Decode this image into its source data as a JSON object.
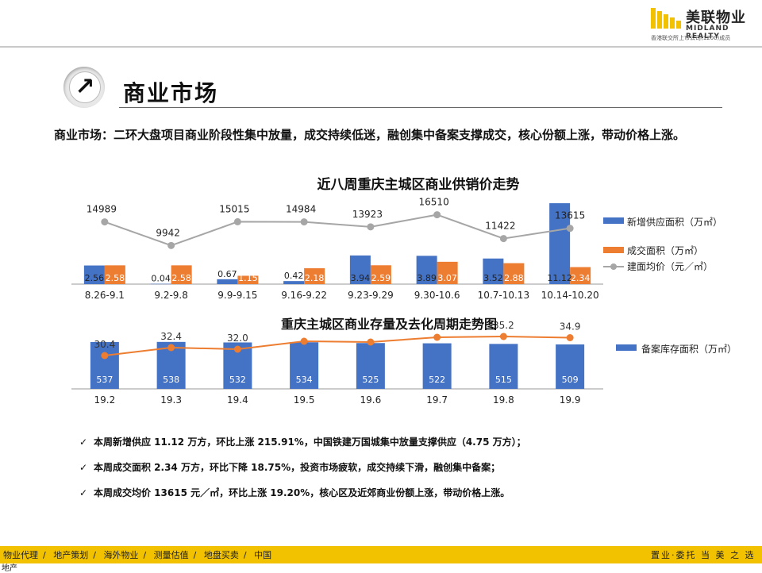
{
  "brand": {
    "name_cn": "美联物业",
    "name_en": "MIDLAND REALTY",
    "subline": "香港联交所上市公司(1200)成员",
    "accent": "#f2c200"
  },
  "title": {
    "text": "商业市场"
  },
  "summary": "商业市场：二环大盘项目商业阶段性集中放量，成交持续低迷，融创集中备案支撑成交，核心份额上涨，带动价格上涨。",
  "chart_data": [
    {
      "type": "bar",
      "title": "近八周重庆主城区商业供销价走势",
      "categories": [
        "8.26-9.1",
        "9.2-9.8",
        "9.9-9.15",
        "9.16-9.22",
        "9.23-9.29",
        "9.30-10.6",
        "10.7-10.13",
        "10.14-10.20"
      ],
      "series": [
        {
          "name": "新增供应面积（万㎡）",
          "kind": "bar",
          "color": "#4472c4",
          "values": [
            2.56,
            0.04,
            0.67,
            0.42,
            3.94,
            3.89,
            3.52,
            11.12
          ],
          "labels": [
            "2.56",
            "0.04",
            "0.67",
            "0.42",
            "3.94",
            "3.89",
            "3.52",
            "11.12"
          ]
        },
        {
          "name": "成交面积（万㎡）",
          "kind": "bar",
          "color": "#ed7d31",
          "values": [
            2.58,
            2.58,
            1.15,
            2.18,
            2.59,
            3.07,
            2.88,
            2.34
          ],
          "labels": [
            "2.58",
            "2.58",
            "1.15",
            "2.18",
            "2.59",
            "3.07",
            "2.88",
            "2.34"
          ]
        },
        {
          "name": "建面均价（元／㎡）",
          "kind": "line",
          "color": "#a6a6a6",
          "values": [
            14989,
            9942,
            15015,
            14984,
            13923,
            16510,
            11422,
            13615
          ]
        }
      ],
      "ylim_bar": [
        0,
        12
      ],
      "ylim_line": [
        0,
        20000
      ],
      "legend": "right"
    },
    {
      "type": "bar",
      "title": "重庆主城区商业存量及去化周期走势图",
      "categories": [
        "19.2",
        "19.3",
        "19.4",
        "19.5",
        "19.6",
        "19.7",
        "19.8",
        "19.9"
      ],
      "series": [
        {
          "name": "备案库存面积（万㎡）",
          "kind": "bar",
          "color": "#4472c4",
          "values": [
            537,
            538,
            532,
            534,
            525,
            522,
            515,
            509
          ]
        },
        {
          "name": "去化周期",
          "kind": "line",
          "color": "#ed7d31",
          "values": [
            30.4,
            32.4,
            32.0,
            34.0,
            33.8,
            35.0,
            35.2,
            34.9
          ],
          "labels": [
            "30.4",
            "32.4",
            "32.0",
            "",
            "",
            "",
            "35.2",
            "34.9"
          ]
        }
      ],
      "ylim_bar": [
        0,
        600
      ],
      "ylim_line": [
        20,
        40
      ],
      "legend": "right"
    }
  ],
  "bullets": [
    "本周新增供应 11.12 万方，环比上涨 215.91%，中国铁建万国城集中放量支撑供应（4.75 万方）；",
    "本周成交面积 2.34 万方，环比下降 18.75%，投资市场疲软，成交持续下滑，融创集中备案；",
    "本周成交均价 13615 元／㎡，环比上涨 19.20%，核心区及近郊商业份额上涨，带动价格上涨。"
  ],
  "footer": {
    "nav": [
      "物业代理",
      "地产策划",
      "海外物业",
      "测量估值",
      "地盘买卖",
      "中国"
    ],
    "slogan": "置业·委托 当 美 之 选",
    "tail": "地产"
  }
}
